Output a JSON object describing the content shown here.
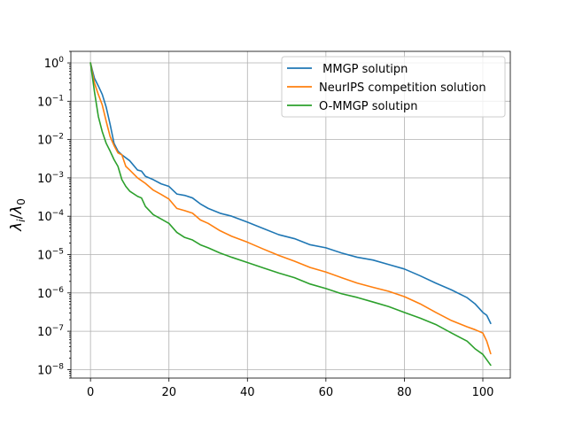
{
  "chart_data": {
    "type": "line",
    "title": "",
    "xlabel": "",
    "ylabel": "λ_i/λ_0",
    "yscale": "log",
    "xlim": [
      -5,
      107
    ],
    "ylim": [
      6e-09,
      2.0
    ],
    "grid": true,
    "legend_position": "top-right",
    "x_ticks": [
      0,
      20,
      40,
      60,
      80,
      100
    ],
    "x_tick_labels": [
      "0",
      "20",
      "40",
      "60",
      "80",
      "100"
    ],
    "y_ticks": [
      1e-08,
      1e-07,
      1e-06,
      1e-05,
      0.0001,
      0.001,
      0.01,
      0.1,
      1.0
    ],
    "y_tick_labels": [
      {
        "base": "10",
        "exp": "−8"
      },
      {
        "base": "10",
        "exp": "−7"
      },
      {
        "base": "10",
        "exp": "−6"
      },
      {
        "base": "10",
        "exp": "−5"
      },
      {
        "base": "10",
        "exp": "−4"
      },
      {
        "base": "10",
        "exp": "−3"
      },
      {
        "base": "10",
        "exp": "−2"
      },
      {
        "base": "10",
        "exp": "−1"
      },
      {
        "base": "10",
        "exp": "0"
      }
    ],
    "series": [
      {
        "name": " MMGP solutipn",
        "color": "#1f77b4",
        "x": [
          0,
          1,
          2,
          3,
          4,
          5,
          6,
          7,
          8,
          10,
          12,
          13,
          14,
          16,
          18,
          20,
          22,
          24,
          26,
          28,
          30,
          33,
          36,
          40,
          44,
          48,
          52,
          56,
          60,
          64,
          68,
          72,
          76,
          80,
          84,
          88,
          92,
          96,
          98,
          100,
          101,
          102
        ],
        "y": [
          1.0,
          0.4,
          0.25,
          0.15,
          0.07,
          0.025,
          0.008,
          0.005,
          0.004,
          0.0028,
          0.0016,
          0.0015,
          0.0011,
          0.0009,
          0.0007,
          0.0006,
          0.00038,
          0.00035,
          0.0003,
          0.00021,
          0.00016,
          0.00012,
          0.0001,
          7e-05,
          4.8e-05,
          3.3e-05,
          2.6e-05,
          1.8e-05,
          1.5e-05,
          1.1e-05,
          8.5e-06,
          7.2e-06,
          5.5e-06,
          4.2e-06,
          2.8e-06,
          1.8e-06,
          1.2e-06,
          7.5e-07,
          5.2e-07,
          3.1e-07,
          2.6e-07,
          1.6e-07
        ]
      },
      {
        "name": "NeurIPS competition solution",
        "color": "#ff7f0e",
        "x": [
          0,
          1,
          2,
          3,
          4,
          5,
          6,
          7,
          8,
          9,
          10,
          12,
          14,
          16,
          18,
          20,
          22,
          24,
          26,
          28,
          30,
          33,
          36,
          40,
          44,
          48,
          52,
          56,
          60,
          64,
          68,
          72,
          76,
          80,
          84,
          88,
          92,
          96,
          98,
          100,
          101,
          102
        ],
        "y": [
          1.0,
          0.3,
          0.15,
          0.08,
          0.03,
          0.012,
          0.007,
          0.0045,
          0.004,
          0.002,
          0.0016,
          0.001,
          0.00072,
          0.00048,
          0.00037,
          0.00028,
          0.00016,
          0.00014,
          0.00012,
          8e-05,
          6.5e-05,
          4.2e-05,
          3e-05,
          2.1e-05,
          1.4e-05,
          9.5e-06,
          6.7e-06,
          4.6e-06,
          3.5e-06,
          2.5e-06,
          1.8e-06,
          1.4e-06,
          1.1e-06,
          8e-07,
          5.2e-07,
          3.1e-07,
          1.9e-07,
          1.3e-07,
          1.1e-07,
          9e-08,
          5.5e-08,
          2.6e-08
        ]
      },
      {
        "name": "O-MMGP solutipn",
        "color": "#2ca02c",
        "x": [
          0,
          1,
          2,
          3,
          4,
          5,
          6,
          7,
          8,
          9,
          10,
          12,
          13,
          14,
          16,
          18,
          20,
          22,
          24,
          26,
          28,
          30,
          33,
          36,
          40,
          44,
          48,
          52,
          56,
          60,
          64,
          68,
          72,
          76,
          80,
          84,
          88,
          92,
          96,
          98,
          100,
          101,
          102
        ],
        "y": [
          1.0,
          0.18,
          0.04,
          0.016,
          0.008,
          0.005,
          0.003,
          0.002,
          0.0009,
          0.0006,
          0.00045,
          0.00033,
          0.0003,
          0.00018,
          0.00011,
          8.5e-05,
          6.5e-05,
          3.8e-05,
          2.8e-05,
          2.4e-05,
          1.8e-05,
          1.5e-05,
          1.1e-05,
          8.5e-06,
          6.2e-06,
          4.5e-06,
          3.3e-06,
          2.5e-06,
          1.7e-06,
          1.3e-06,
          9.5e-07,
          7.6e-07,
          5.8e-07,
          4.4e-07,
          3.1e-07,
          2.2e-07,
          1.5e-07,
          9e-08,
          5.5e-08,
          3.5e-08,
          2.5e-08,
          1.8e-08,
          1.3e-08
        ]
      }
    ]
  }
}
